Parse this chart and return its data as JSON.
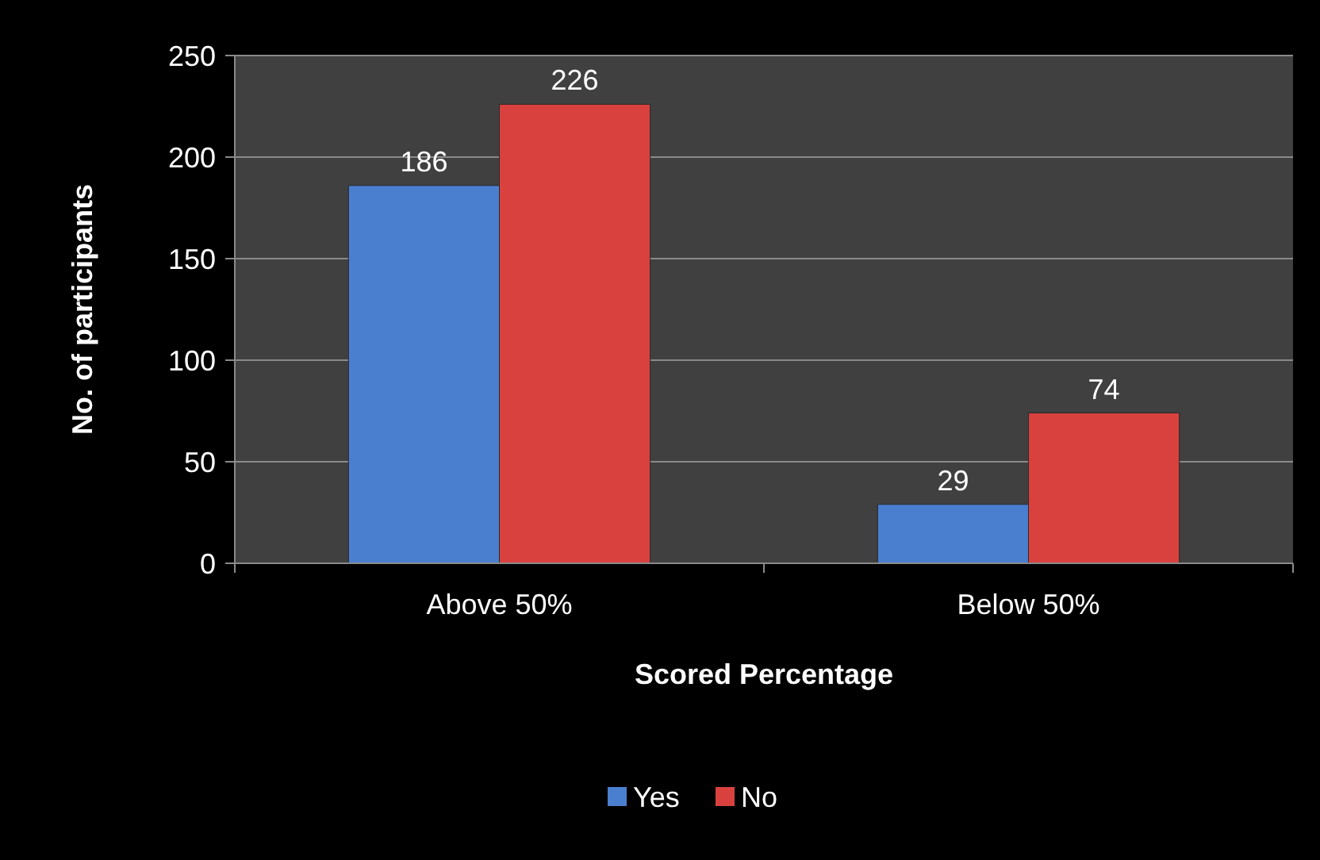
{
  "chart_data": {
    "type": "bar",
    "xlabel": "Scored Percentage",
    "ylabel": "No. of participants",
    "categories": [
      "Above 50%",
      "Below 50%"
    ],
    "series": [
      {
        "name": "Yes",
        "color": "#4a7fd0",
        "values": [
          186,
          29
        ]
      },
      {
        "name": "No",
        "color": "#d9413f",
        "values": [
          226,
          74
        ]
      }
    ],
    "ylim": [
      0,
      250
    ],
    "yticks": [
      0,
      50,
      100,
      150,
      200,
      250
    ],
    "grid": "y",
    "legend": "bottom",
    "data_labels": true
  }
}
